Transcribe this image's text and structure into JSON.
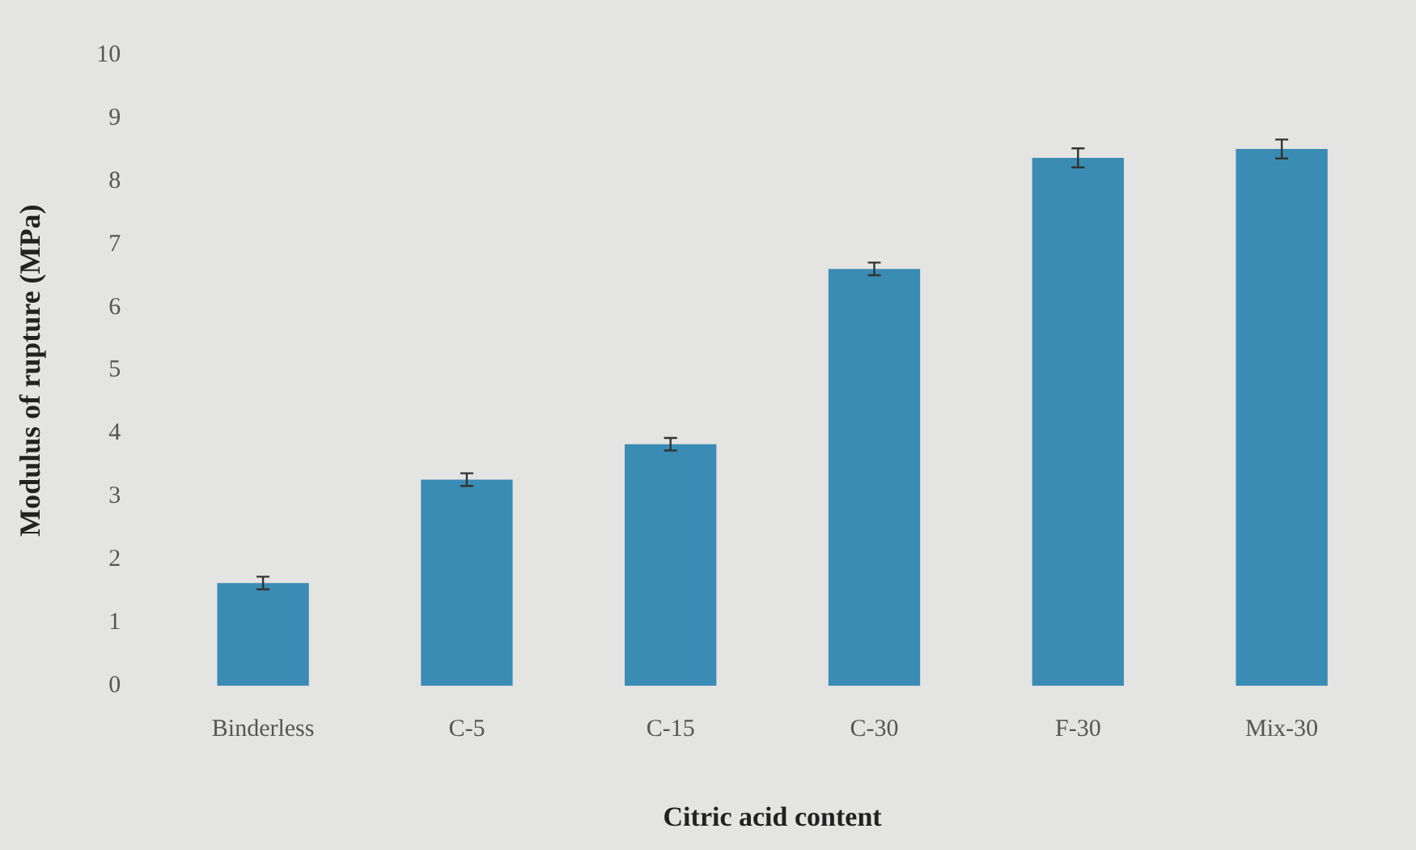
{
  "chart_data": {
    "type": "bar",
    "xlabel": "Citric acid content",
    "ylabel": "Modulus of rupture (MPa)",
    "categories": [
      "Binderless",
      "C-5",
      "C-15",
      "C-30",
      "F-30",
      "Mix-30"
    ],
    "values": [
      1.63,
      3.27,
      3.83,
      6.61,
      8.37,
      8.51
    ],
    "errors": [
      0.1,
      0.1,
      0.1,
      0.1,
      0.15,
      0.15
    ],
    "color": "#3a8cb4",
    "ylim": [
      0,
      10
    ],
    "yticks": [
      0,
      1,
      2,
      3,
      4,
      5,
      6,
      7,
      8,
      9,
      10
    ],
    "grid": false,
    "legend": false
  }
}
